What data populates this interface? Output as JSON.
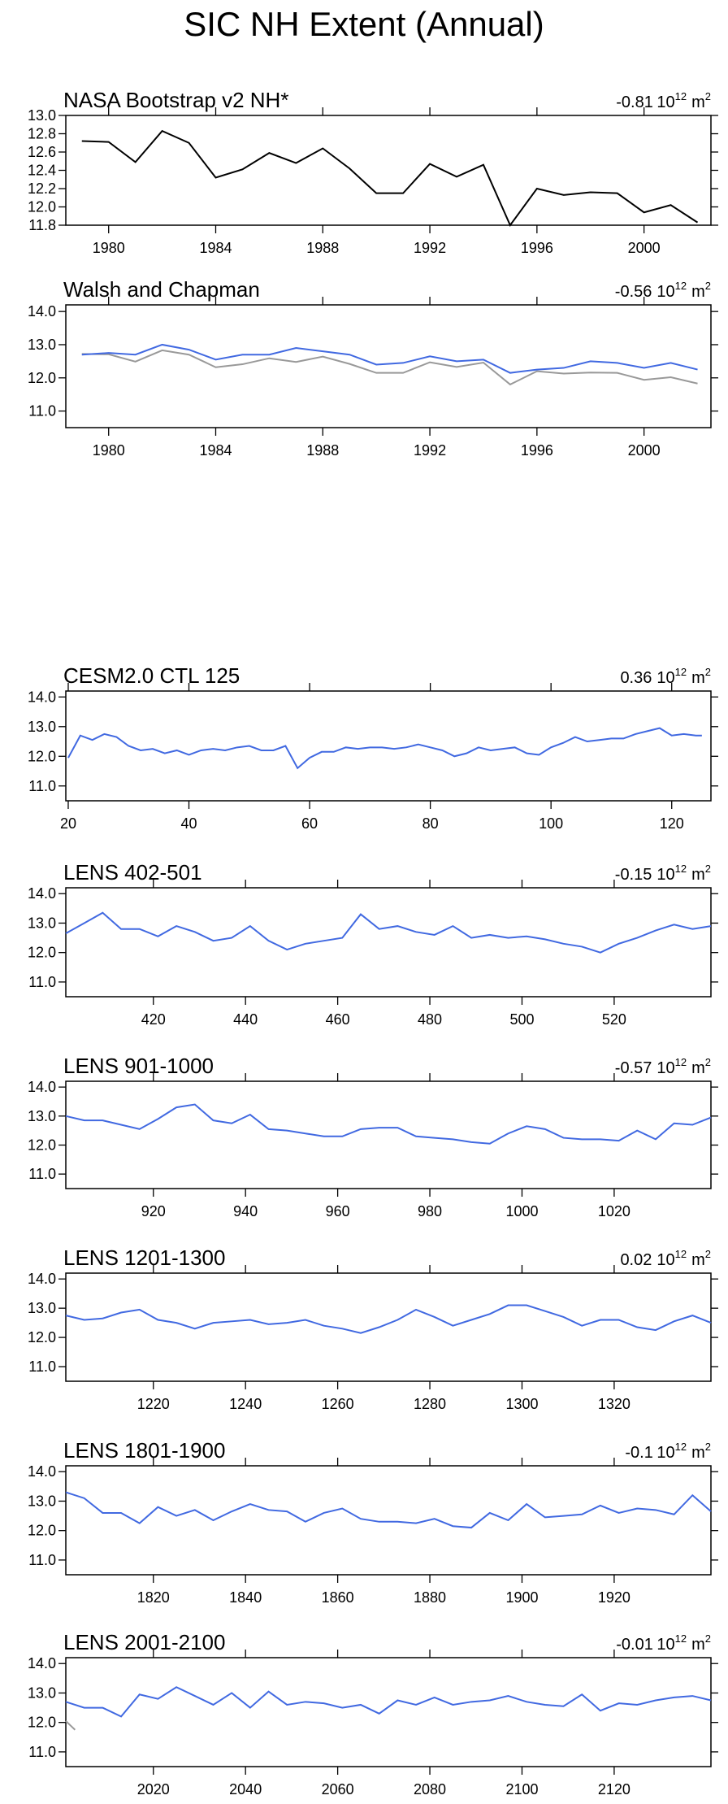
{
  "title": "SIC NH Extent (Annual)",
  "trend_units": {
    "base": "10",
    "exp": "12",
    "unit": "m",
    "unit_exp": "2"
  },
  "chart_data": [
    {
      "type": "line",
      "title": "NASA Bootstrap v2 NH*",
      "trend": "-0.81",
      "xlim": [
        1978.4,
        2002.5
      ],
      "xticks": [
        1980,
        1984,
        1988,
        1992,
        1996,
        2000
      ],
      "ylim": [
        11.8,
        13.0
      ],
      "yticks": [
        11.8,
        {
          "value": 12,
          "label": "12.0"
        },
        12.2,
        12.4,
        12.6,
        12.8,
        {
          "value": 13,
          "label": "13.0"
        }
      ],
      "series": [
        {
          "color": "#000000",
          "x": [
            1979,
            1980,
            1981,
            1982,
            1983,
            1984,
            1985,
            1986,
            1987,
            1988,
            1989,
            1990,
            1991,
            1992,
            1993,
            1994,
            1995,
            1996,
            1997,
            1998,
            1999,
            2000,
            2001,
            2002
          ],
          "values": [
            12.72,
            12.71,
            12.49,
            12.83,
            12.7,
            12.32,
            12.41,
            12.59,
            12.48,
            12.64,
            12.42,
            12.15,
            12.15,
            12.47,
            12.33,
            12.46,
            11.8,
            12.2,
            12.13,
            12.16,
            12.15,
            11.94,
            12.02,
            11.83
          ]
        }
      ]
    },
    {
      "type": "line",
      "title": "Walsh and Chapman",
      "trend": "-0.56",
      "xlim": [
        1978.4,
        2002.5
      ],
      "xticks": [
        1980,
        1984,
        1988,
        1992,
        1996,
        2000
      ],
      "ylim": [
        10.5,
        14.2
      ],
      "yticks": [
        {
          "value": 11,
          "label": "11.0"
        },
        {
          "value": 12,
          "label": "12.0"
        },
        {
          "value": 13,
          "label": "13.0"
        },
        {
          "value": 14,
          "label": "14.0"
        }
      ],
      "series": [
        {
          "color": "#999999",
          "x": [
            1979,
            1980,
            1981,
            1982,
            1983,
            1984,
            1985,
            1986,
            1987,
            1988,
            1989,
            1990,
            1991,
            1992,
            1993,
            1994,
            1995,
            1996,
            1997,
            1998,
            1999,
            2000,
            2001,
            2002
          ],
          "values": [
            12.72,
            12.71,
            12.49,
            12.83,
            12.7,
            12.32,
            12.41,
            12.59,
            12.48,
            12.64,
            12.42,
            12.15,
            12.15,
            12.47,
            12.33,
            12.46,
            11.8,
            12.2,
            12.13,
            12.16,
            12.15,
            11.94,
            12.02,
            11.83
          ]
        },
        {
          "color": "#4169e1",
          "x": [
            1979,
            1980,
            1981,
            1982,
            1983,
            1984,
            1985,
            1986,
            1987,
            1988,
            1989,
            1990,
            1991,
            1992,
            1993,
            1994,
            1995,
            1996,
            1997,
            1998,
            1999,
            2000,
            2001,
            2002
          ],
          "values": [
            12.7,
            12.75,
            12.7,
            13.0,
            12.85,
            12.55,
            12.7,
            12.7,
            12.9,
            12.8,
            12.7,
            12.4,
            12.45,
            12.65,
            12.5,
            12.55,
            12.15,
            12.25,
            12.3,
            12.5,
            12.45,
            12.3,
            12.45,
            12.25
          ]
        }
      ]
    },
    {
      "type": "line",
      "title": "CESM2.0 CTL 125",
      "trend": "0.36",
      "xlim": [
        19.6,
        126.5
      ],
      "xticks": [
        20,
        40,
        60,
        80,
        100,
        120
      ],
      "ylim": [
        10.5,
        14.2
      ],
      "yticks": [
        {
          "value": 11,
          "label": "11.0"
        },
        {
          "value": 12,
          "label": "12.0"
        },
        {
          "value": 13,
          "label": "13.0"
        },
        {
          "value": 14,
          "label": "14.0"
        }
      ],
      "series": [
        {
          "color": "#4169e1",
          "x": [
            20,
            22,
            24,
            26,
            28,
            30,
            32,
            34,
            36,
            38,
            40,
            42,
            44,
            46,
            48,
            50,
            52,
            54,
            56,
            58,
            60,
            62,
            64,
            66,
            68,
            70,
            72,
            74,
            76,
            78,
            80,
            82,
            84,
            86,
            88,
            90,
            92,
            94,
            96,
            98,
            100,
            102,
            104,
            106,
            108,
            110,
            112,
            114,
            116,
            118,
            120,
            122,
            124,
            125
          ],
          "values": [
            11.95,
            12.7,
            12.55,
            12.75,
            12.65,
            12.35,
            12.2,
            12.25,
            12.1,
            12.2,
            12.05,
            12.2,
            12.25,
            12.2,
            12.3,
            12.35,
            12.2,
            12.2,
            12.35,
            11.6,
            11.95,
            12.15,
            12.15,
            12.3,
            12.25,
            12.3,
            12.3,
            12.25,
            12.3,
            12.4,
            12.3,
            12.2,
            12.0,
            12.1,
            12.3,
            12.2,
            12.25,
            12.3,
            12.1,
            12.05,
            12.3,
            12.45,
            12.65,
            12.5,
            12.55,
            12.6,
            12.6,
            12.75,
            12.85,
            12.95,
            12.7,
            12.75,
            12.7,
            12.7
          ]
        }
      ]
    },
    {
      "type": "line",
      "title": "LENS 402-501",
      "trend": "-0.15",
      "xlim": [
        401,
        541
      ],
      "xticks": [
        420,
        440,
        460,
        480,
        500,
        520
      ],
      "ylim": [
        10.5,
        14.2
      ],
      "yticks": [
        {
          "value": 11,
          "label": "11.0"
        },
        {
          "value": 12,
          "label": "12.0"
        },
        {
          "value": 13,
          "label": "13.0"
        },
        {
          "value": 14,
          "label": "14.0"
        }
      ],
      "series": [
        {
          "color": "#4169e1",
          "x": [
            401,
            405,
            409,
            413,
            417,
            421,
            425,
            429,
            433,
            437,
            441,
            445,
            449,
            453,
            457,
            461,
            465,
            469,
            473,
            477,
            481,
            485,
            489,
            493,
            497,
            501,
            505,
            509,
            513,
            517,
            521,
            525,
            529,
            533,
            537,
            541
          ],
          "values": [
            12.65,
            13.0,
            13.35,
            12.8,
            12.8,
            12.55,
            12.9,
            12.7,
            12.4,
            12.5,
            12.9,
            12.4,
            12.1,
            12.3,
            12.4,
            12.5,
            13.3,
            12.8,
            12.9,
            12.7,
            12.6,
            12.9,
            12.5,
            12.6,
            12.5,
            12.55,
            12.45,
            12.3,
            12.2,
            12.0,
            12.3,
            12.5,
            12.75,
            12.95,
            12.8,
            12.9
          ]
        }
      ]
    },
    {
      "type": "line",
      "title": "LENS 901-1000",
      "trend": "-0.57",
      "xlim": [
        901,
        1041
      ],
      "xticks": [
        920,
        940,
        960,
        980,
        1000,
        1020
      ],
      "ylim": [
        10.5,
        14.2
      ],
      "yticks": [
        {
          "value": 11,
          "label": "11.0"
        },
        {
          "value": 12,
          "label": "12.0"
        },
        {
          "value": 13,
          "label": "13.0"
        },
        {
          "value": 14,
          "label": "14.0"
        }
      ],
      "series": [
        {
          "color": "#4169e1",
          "x": [
            901,
            905,
            909,
            913,
            917,
            921,
            925,
            929,
            933,
            937,
            941,
            945,
            949,
            953,
            957,
            961,
            965,
            969,
            973,
            977,
            981,
            985,
            989,
            993,
            997,
            1001,
            1005,
            1009,
            1013,
            1017,
            1021,
            1025,
            1029,
            1033,
            1037,
            1041
          ],
          "values": [
            13.0,
            12.85,
            12.85,
            12.7,
            12.55,
            12.9,
            13.3,
            13.4,
            12.85,
            12.75,
            13.05,
            12.55,
            12.5,
            12.4,
            12.3,
            12.3,
            12.55,
            12.6,
            12.6,
            12.3,
            12.25,
            12.2,
            12.1,
            12.05,
            12.4,
            12.65,
            12.55,
            12.25,
            12.2,
            12.2,
            12.15,
            12.5,
            12.2,
            12.75,
            12.7,
            12.95
          ]
        }
      ]
    },
    {
      "type": "line",
      "title": "LENS 1201-1300",
      "trend": "0.02",
      "xlim": [
        1201,
        1341
      ],
      "xticks": [
        1220,
        1240,
        1260,
        1280,
        1300,
        1320
      ],
      "ylim": [
        10.5,
        14.2
      ],
      "yticks": [
        {
          "value": 11,
          "label": "11.0"
        },
        {
          "value": 12,
          "label": "12.0"
        },
        {
          "value": 13,
          "label": "13.0"
        },
        {
          "value": 14,
          "label": "14.0"
        }
      ],
      "series": [
        {
          "color": "#4169e1",
          "x": [
            1201,
            1205,
            1209,
            1213,
            1217,
            1221,
            1225,
            1229,
            1233,
            1237,
            1241,
            1245,
            1249,
            1253,
            1257,
            1261,
            1265,
            1269,
            1273,
            1277,
            1281,
            1285,
            1289,
            1293,
            1297,
            1301,
            1305,
            1309,
            1313,
            1317,
            1321,
            1325,
            1329,
            1333,
            1337,
            1341
          ],
          "values": [
            12.75,
            12.6,
            12.65,
            12.85,
            12.95,
            12.6,
            12.5,
            12.3,
            12.5,
            12.55,
            12.6,
            12.45,
            12.5,
            12.6,
            12.4,
            12.3,
            12.15,
            12.35,
            12.6,
            12.95,
            12.7,
            12.4,
            12.6,
            12.8,
            13.1,
            13.1,
            12.9,
            12.7,
            12.4,
            12.6,
            12.6,
            12.35,
            12.25,
            12.55,
            12.75,
            12.5
          ]
        }
      ]
    },
    {
      "type": "line",
      "title": "LENS 1801-1900",
      "trend": "-0.1",
      "xlim": [
        1801,
        1941
      ],
      "xticks": [
        1820,
        1840,
        1860,
        1880,
        1900,
        1920
      ],
      "ylim": [
        10.5,
        14.2
      ],
      "yticks": [
        {
          "value": 11,
          "label": "11.0"
        },
        {
          "value": 12,
          "label": "12.0"
        },
        {
          "value": 13,
          "label": "13.0"
        },
        {
          "value": 14,
          "label": "14.0"
        }
      ],
      "series": [
        {
          "color": "#4169e1",
          "x": [
            1801,
            1805,
            1809,
            1813,
            1817,
            1821,
            1825,
            1829,
            1833,
            1837,
            1841,
            1845,
            1849,
            1853,
            1857,
            1861,
            1865,
            1869,
            1873,
            1877,
            1881,
            1885,
            1889,
            1893,
            1897,
            1901,
            1905,
            1909,
            1913,
            1917,
            1921,
            1925,
            1929,
            1933,
            1937,
            1941
          ],
          "values": [
            13.3,
            13.1,
            12.6,
            12.6,
            12.25,
            12.8,
            12.5,
            12.7,
            12.35,
            12.65,
            12.9,
            12.7,
            12.65,
            12.3,
            12.6,
            12.75,
            12.4,
            12.3,
            12.3,
            12.25,
            12.4,
            12.15,
            12.1,
            12.6,
            12.35,
            12.9,
            12.45,
            12.5,
            12.55,
            12.85,
            12.6,
            12.75,
            12.7,
            12.55,
            13.2,
            12.65
          ]
        }
      ]
    },
    {
      "type": "line",
      "title": "LENS 2001-2100",
      "trend": "-0.01",
      "xlim": [
        2001,
        2141
      ],
      "xticks": [
        2020,
        2040,
        2060,
        2080,
        2100,
        2120
      ],
      "ylim": [
        10.5,
        14.2
      ],
      "yticks": [
        {
          "value": 11,
          "label": "11.0"
        },
        {
          "value": 12,
          "label": "12.0"
        },
        {
          "value": 13,
          "label": "13.0"
        },
        {
          "value": 14,
          "label": "14.0"
        }
      ],
      "series": [
        {
          "color": "#999999",
          "x": [
            2001,
            2002,
            2003
          ],
          "values": [
            12.05,
            11.9,
            11.75
          ]
        },
        {
          "color": "#4169e1",
          "x": [
            2001,
            2005,
            2009,
            2013,
            2017,
            2021,
            2025,
            2029,
            2033,
            2037,
            2041,
            2045,
            2049,
            2053,
            2057,
            2061,
            2065,
            2069,
            2073,
            2077,
            2081,
            2085,
            2089,
            2093,
            2097,
            2101,
            2105,
            2109,
            2113,
            2117,
            2121,
            2125,
            2129,
            2133,
            2137,
            2141
          ],
          "values": [
            12.7,
            12.5,
            12.5,
            12.2,
            12.95,
            12.8,
            13.2,
            12.9,
            12.6,
            13.0,
            12.5,
            13.05,
            12.6,
            12.7,
            12.65,
            12.5,
            12.6,
            12.3,
            12.75,
            12.6,
            12.85,
            12.6,
            12.7,
            12.75,
            12.9,
            12.7,
            12.6,
            12.55,
            12.95,
            12.4,
            12.65,
            12.6,
            12.75,
            12.85,
            12.9,
            12.75
          ]
        }
      ]
    }
  ]
}
